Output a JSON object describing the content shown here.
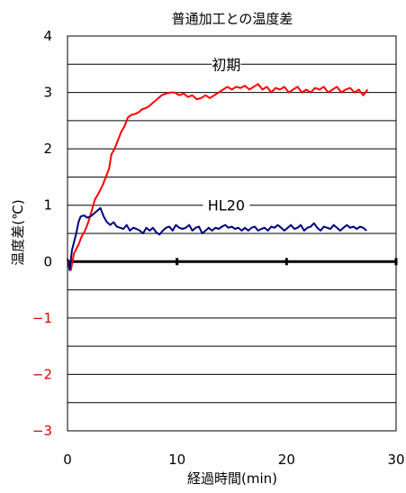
{
  "chart_data": {
    "type": "line",
    "title": "普通加工との温度差",
    "xlabel": "経過時間(min)",
    "ylabel": "温度差(℃)",
    "xlim": [
      0,
      30
    ],
    "ylim": [
      -3,
      4
    ],
    "x_ticks": [
      0,
      10,
      20,
      30
    ],
    "y_ticks": [
      4,
      3,
      2,
      1,
      0,
      -1,
      -2,
      -3
    ],
    "x_tick_labels": [
      "0",
      "10",
      "20",
      "30"
    ],
    "y_tick_labels": [
      "4",
      "3",
      "2",
      "1",
      "0",
      "−1",
      "−2",
      "−3"
    ],
    "negative_tick_color": "#e00000",
    "grid": {
      "horizontal_step": 0.5,
      "vertical": false
    },
    "zero_line": {
      "y": 0,
      "major_ticks_x": [
        10,
        20,
        30
      ],
      "color": "#000000"
    },
    "series": [
      {
        "name": "初期",
        "color": "#ff0000",
        "label_position": {
          "x": 14.5,
          "y": 3.5
        },
        "points": [
          [
            0.0,
            0.05
          ],
          [
            0.3,
            -0.15
          ],
          [
            0.6,
            0.15
          ],
          [
            1.0,
            0.3
          ],
          [
            1.3,
            0.45
          ],
          [
            1.6,
            0.55
          ],
          [
            1.9,
            0.7
          ],
          [
            2.2,
            0.9
          ],
          [
            2.5,
            1.1
          ],
          [
            2.8,
            1.2
          ],
          [
            3.2,
            1.35
          ],
          [
            3.5,
            1.5
          ],
          [
            3.8,
            1.65
          ],
          [
            4.0,
            1.9
          ],
          [
            4.3,
            2.0
          ],
          [
            4.6,
            2.15
          ],
          [
            4.9,
            2.3
          ],
          [
            5.2,
            2.4
          ],
          [
            5.5,
            2.55
          ],
          [
            5.8,
            2.6
          ],
          [
            6.2,
            2.62
          ],
          [
            6.5,
            2.65
          ],
          [
            6.8,
            2.7
          ],
          [
            7.1,
            2.72
          ],
          [
            7.4,
            2.75
          ],
          [
            7.7,
            2.8
          ],
          [
            8.0,
            2.85
          ],
          [
            8.3,
            2.9
          ],
          [
            8.6,
            2.95
          ],
          [
            9.0,
            2.98
          ],
          [
            9.4,
            3.0
          ],
          [
            9.8,
            3.0
          ],
          [
            10.2,
            2.95
          ],
          [
            10.6,
            2.98
          ],
          [
            11.0,
            2.92
          ],
          [
            11.4,
            2.95
          ],
          [
            11.8,
            2.88
          ],
          [
            12.2,
            2.9
          ],
          [
            12.6,
            2.95
          ],
          [
            13.0,
            2.9
          ],
          [
            13.4,
            2.95
          ],
          [
            13.8,
            3.0
          ],
          [
            14.2,
            3.05
          ],
          [
            14.6,
            3.1
          ],
          [
            15.0,
            3.05
          ],
          [
            15.4,
            3.1
          ],
          [
            15.8,
            3.08
          ],
          [
            16.2,
            3.12
          ],
          [
            16.6,
            3.05
          ],
          [
            17.0,
            3.1
          ],
          [
            17.4,
            3.15
          ],
          [
            17.8,
            3.05
          ],
          [
            18.2,
            3.1
          ],
          [
            18.6,
            3.0
          ],
          [
            19.0,
            3.08
          ],
          [
            19.4,
            3.05
          ],
          [
            19.8,
            3.1
          ],
          [
            20.2,
            3.0
          ],
          [
            20.6,
            3.05
          ],
          [
            21.0,
            3.1
          ],
          [
            21.4,
            3.0
          ],
          [
            21.8,
            3.05
          ],
          [
            22.2,
            3.0
          ],
          [
            22.6,
            3.08
          ],
          [
            23.0,
            3.05
          ],
          [
            23.4,
            3.1
          ],
          [
            23.8,
            3.0
          ],
          [
            24.2,
            3.05
          ],
          [
            24.6,
            3.1
          ],
          [
            25.0,
            3.0
          ],
          [
            25.4,
            3.05
          ],
          [
            25.8,
            3.08
          ],
          [
            26.2,
            3.0
          ],
          [
            26.6,
            3.05
          ],
          [
            27.0,
            2.95
          ],
          [
            27.4,
            3.05
          ]
        ]
      },
      {
        "name": "HL20",
        "color": "#00007f",
        "label_position": {
          "x": 14.5,
          "y": 1.0
        },
        "points": [
          [
            0.0,
            0.05
          ],
          [
            0.2,
            -0.15
          ],
          [
            0.4,
            0.2
          ],
          [
            0.6,
            0.35
          ],
          [
            0.8,
            0.5
          ],
          [
            1.0,
            0.7
          ],
          [
            1.2,
            0.8
          ],
          [
            1.5,
            0.82
          ],
          [
            1.8,
            0.78
          ],
          [
            2.1,
            0.8
          ],
          [
            2.4,
            0.85
          ],
          [
            2.7,
            0.9
          ],
          [
            3.0,
            0.95
          ],
          [
            3.3,
            0.8
          ],
          [
            3.6,
            0.7
          ],
          [
            3.9,
            0.65
          ],
          [
            4.2,
            0.7
          ],
          [
            4.5,
            0.62
          ],
          [
            4.8,
            0.6
          ],
          [
            5.1,
            0.58
          ],
          [
            5.4,
            0.65
          ],
          [
            5.7,
            0.55
          ],
          [
            6.0,
            0.6
          ],
          [
            6.3,
            0.58
          ],
          [
            6.6,
            0.55
          ],
          [
            6.9,
            0.5
          ],
          [
            7.2,
            0.6
          ],
          [
            7.5,
            0.55
          ],
          [
            7.8,
            0.6
          ],
          [
            8.1,
            0.52
          ],
          [
            8.4,
            0.48
          ],
          [
            8.7,
            0.55
          ],
          [
            9.0,
            0.6
          ],
          [
            9.3,
            0.62
          ],
          [
            9.6,
            0.55
          ],
          [
            9.9,
            0.65
          ],
          [
            10.2,
            0.6
          ],
          [
            10.5,
            0.58
          ],
          [
            10.8,
            0.6
          ],
          [
            11.1,
            0.65
          ],
          [
            11.4,
            0.55
          ],
          [
            11.7,
            0.6
          ],
          [
            12.0,
            0.62
          ],
          [
            12.3,
            0.5
          ],
          [
            12.6,
            0.55
          ],
          [
            12.9,
            0.6
          ],
          [
            13.2,
            0.55
          ],
          [
            13.5,
            0.6
          ],
          [
            13.8,
            0.58
          ],
          [
            14.1,
            0.62
          ],
          [
            14.4,
            0.65
          ],
          [
            14.7,
            0.6
          ],
          [
            15.0,
            0.62
          ],
          [
            15.3,
            0.58
          ],
          [
            15.6,
            0.6
          ],
          [
            15.9,
            0.55
          ],
          [
            16.2,
            0.6
          ],
          [
            16.5,
            0.55
          ],
          [
            16.8,
            0.6
          ],
          [
            17.1,
            0.62
          ],
          [
            17.4,
            0.55
          ],
          [
            17.7,
            0.58
          ],
          [
            18.0,
            0.6
          ],
          [
            18.3,
            0.55
          ],
          [
            18.6,
            0.62
          ],
          [
            18.9,
            0.6
          ],
          [
            19.2,
            0.65
          ],
          [
            19.5,
            0.6
          ],
          [
            19.8,
            0.55
          ],
          [
            20.1,
            0.6
          ],
          [
            20.4,
            0.65
          ],
          [
            20.7,
            0.58
          ],
          [
            21.0,
            0.6
          ],
          [
            21.3,
            0.65
          ],
          [
            21.6,
            0.55
          ],
          [
            21.9,
            0.6
          ],
          [
            22.2,
            0.62
          ],
          [
            22.5,
            0.68
          ],
          [
            22.8,
            0.6
          ],
          [
            23.1,
            0.55
          ],
          [
            23.4,
            0.62
          ],
          [
            23.7,
            0.6
          ],
          [
            24.0,
            0.58
          ],
          [
            24.3,
            0.65
          ],
          [
            24.6,
            0.6
          ],
          [
            24.9,
            0.55
          ],
          [
            25.2,
            0.6
          ],
          [
            25.5,
            0.65
          ],
          [
            25.8,
            0.6
          ],
          [
            26.1,
            0.62
          ],
          [
            26.4,
            0.58
          ],
          [
            26.7,
            0.62
          ],
          [
            27.0,
            0.6
          ],
          [
            27.3,
            0.55
          ]
        ]
      }
    ]
  }
}
